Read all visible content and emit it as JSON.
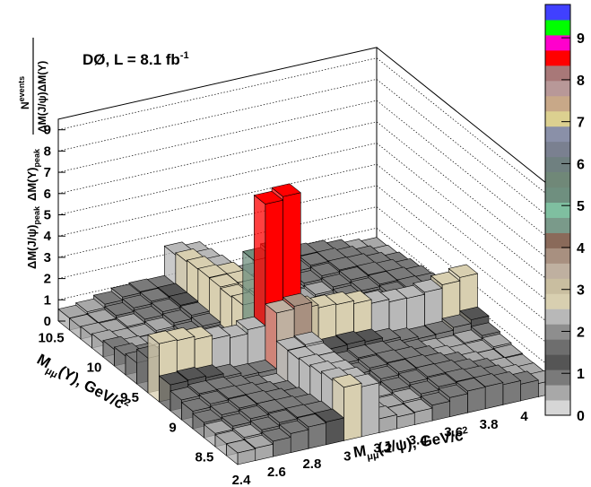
{
  "chart_data": {
    "type": "lego3d",
    "title": "DØ, L = 8.1 fb",
    "title_sup": "-1",
    "xlabel": "M",
    "xlabel_sub": "μμ",
    "xlabel_rest": "(J/ψ), GeV/c",
    "xlabel_sup": "2",
    "ylabel": "M",
    "ylabel_sub": "μμ",
    "ylabel_rest": "(Υ), GeV/c",
    "ylabel_sup": "2",
    "zlabel_top": "N",
    "zlabel_top_sup": "events",
    "zlabel_bottom": "ΔM(J/ψ)ΔM(Υ)",
    "zlabel_left": "ΔM(J/ψ)",
    "zlabel_left_sub": "peak",
    "zlabel_mid": "ΔM(Υ)",
    "zlabel_mid_sub": "peak",
    "x_ticks": [
      "2.4",
      "2.6",
      "2.8",
      "3",
      "3.2",
      "3.4",
      "3.6",
      "3.8",
      "4"
    ],
    "y_ticks": [
      "8.5",
      "9",
      "9.5",
      "10",
      "10.5"
    ],
    "z_ticks": [
      "0",
      "1",
      "2",
      "3",
      "4",
      "5",
      "6",
      "7",
      "8",
      "9"
    ],
    "colorbar_ticks": [
      "0",
      "1",
      "2",
      "3",
      "4",
      "5",
      "6",
      "7",
      "8",
      "9"
    ],
    "xlim": [
      2.4,
      4.2
    ],
    "ylim": [
      8.3,
      10.7
    ],
    "zlim": [
      0,
      9.5
    ],
    "colors": [
      "#d6d6d6",
      "#a8a8a8",
      "#7a7a7a",
      "#555555",
      "#6e6e6e",
      "#8e8e8e",
      "#b8b8b8",
      "#d8cfb0",
      "#c9bea0",
      "#bfb0a0",
      "#a89080",
      "#8a6a5a",
      "#7a9a8a",
      "#7fbfa0",
      "#6f8f7f",
      "#708878",
      "#6f8080",
      "#7a8090",
      "#8a90a8",
      "#dcd090",
      "#c8a888",
      "#b89898",
      "#a87878",
      "#ff0000",
      "#ff00cc",
      "#00ff00",
      "#4040ff"
    ]
  }
}
